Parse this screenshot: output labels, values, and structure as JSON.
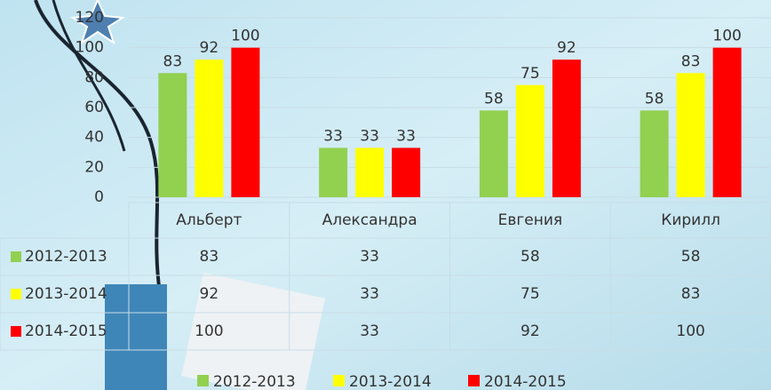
{
  "chart_data": {
    "type": "bar",
    "categories": [
      "Альберт",
      "Александра",
      "Евгения",
      "Кирилл"
    ],
    "series": [
      {
        "name": "2012-2013",
        "color": "#92d050",
        "values": [
          83,
          33,
          58,
          58
        ]
      },
      {
        "name": "2013-2014",
        "color": "#ffff00",
        "values": [
          92,
          33,
          75,
          83
        ]
      },
      {
        "name": "2014-2015",
        "color": "#ff0000",
        "values": [
          100,
          33,
          92,
          100
        ]
      }
    ],
    "ylim": [
      0,
      120
    ],
    "yticks": [
      0,
      20,
      40,
      60,
      80,
      100,
      120
    ],
    "grid": true,
    "legend": "bottom",
    "data_table": true
  }
}
